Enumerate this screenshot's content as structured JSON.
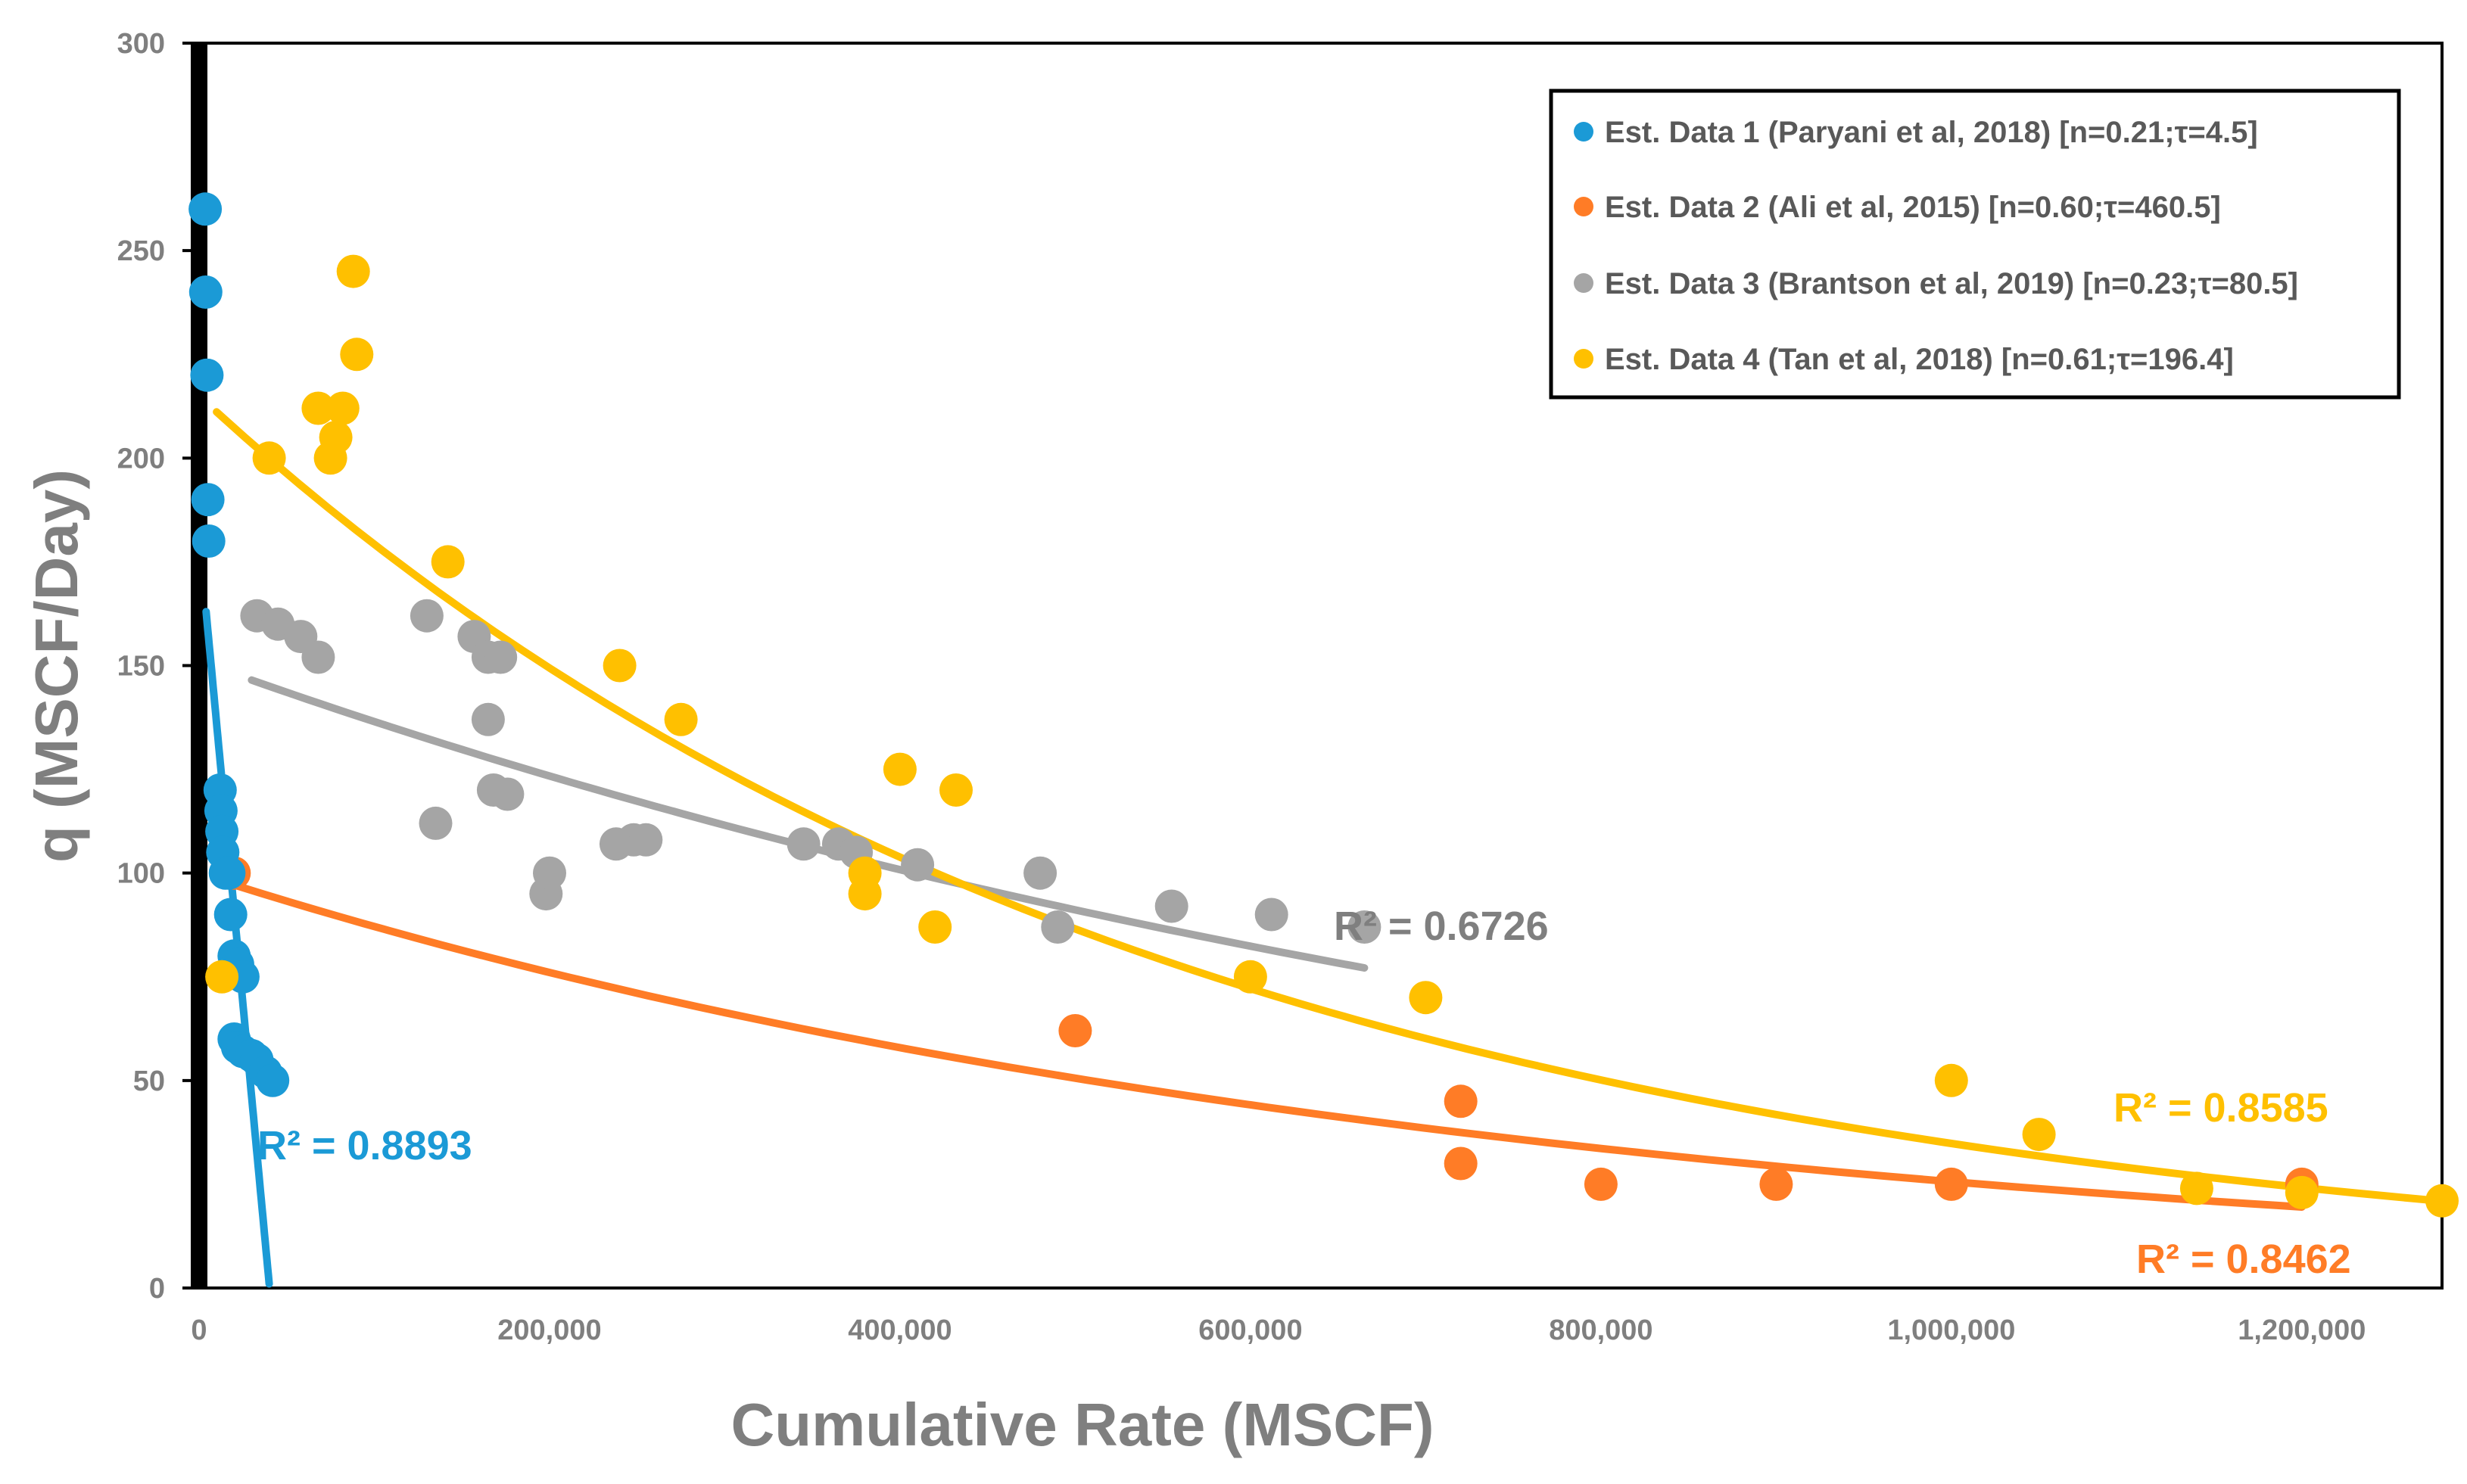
{
  "chart_data": {
    "type": "scatter",
    "title": "",
    "xlabel": "Cumulative Rate (MSCF)",
    "ylabel": "q (MSCF/Day)",
    "xlim": [
      0,
      1280000
    ],
    "ylim": [
      0,
      300
    ],
    "x_ticks": [
      0,
      200000,
      400000,
      600000,
      800000,
      1000000,
      1200000
    ],
    "x_tick_labels": [
      "0",
      "200,000",
      "400,000",
      "600,000",
      "800,000",
      "1,000,000",
      "1,200,000"
    ],
    "y_ticks": [
      0,
      50,
      100,
      150,
      200,
      250,
      300
    ],
    "y_tick_labels": [
      "0",
      "50",
      "100",
      "150",
      "200",
      "250",
      "300"
    ],
    "legend_position": "top-right",
    "series": [
      {
        "name": "Est. Data 1 (Paryani et al, 2018) [n=0.21;τ=4.5]",
        "color": "#1b9ad6",
        "r2_label": "R² = 0.8893",
        "trendline": {
          "x_start": 4000,
          "x_end": 40000,
          "kind": "linear",
          "a": 181,
          "b": 0.0045
        },
        "points": [
          [
            3500,
            260
          ],
          [
            3800,
            240
          ],
          [
            4500,
            220
          ],
          [
            5000,
            190
          ],
          [
            5500,
            180
          ],
          [
            12000,
            120
          ],
          [
            12500,
            115
          ],
          [
            13000,
            110
          ],
          [
            13500,
            105
          ],
          [
            15000,
            100
          ],
          [
            17000,
            100
          ],
          [
            18000,
            90
          ],
          [
            20000,
            80
          ],
          [
            22000,
            78
          ],
          [
            25000,
            75
          ],
          [
            20000,
            60
          ],
          [
            22000,
            58
          ],
          [
            25000,
            57
          ],
          [
            30000,
            56
          ],
          [
            33000,
            55
          ],
          [
            38000,
            52
          ],
          [
            42000,
            50
          ]
        ]
      },
      {
        "name": "Est. Data 2 (Ali et al, 2015) [n=0.60;τ=460.5]",
        "color": "#ff7c26",
        "r2_label": "R² = 0.8462",
        "trendline": {
          "x_start": 20000,
          "x_end": 1200000,
          "kind": "exponential",
          "a": 99.8,
          "b": 1.36e-06
        },
        "points": [
          [
            20000,
            100
          ],
          [
            500000,
            62
          ],
          [
            720000,
            45
          ],
          [
            720000,
            30
          ],
          [
            800000,
            25
          ],
          [
            900000,
            25
          ],
          [
            1000000,
            25
          ],
          [
            1200000,
            25
          ]
        ]
      },
      {
        "name": "Est. Data 3 (Brantson et al, 2019) [n=0.23;τ=80.5]",
        "color": "#a5a5a5",
        "r2_label": "R² = 0.6726",
        "trendline": {
          "x_start": 30000,
          "x_end": 665000,
          "kind": "exponential",
          "a": 151,
          "b": 1.01e-06
        },
        "points": [
          [
            33000,
            162
          ],
          [
            45000,
            160
          ],
          [
            58000,
            157
          ],
          [
            68000,
            152
          ],
          [
            130000,
            162
          ],
          [
            135000,
            112
          ],
          [
            157000,
            157
          ],
          [
            165000,
            152
          ],
          [
            172000,
            152
          ],
          [
            165000,
            137
          ],
          [
            168000,
            120
          ],
          [
            176000,
            119
          ],
          [
            198000,
            95
          ],
          [
            200000,
            100
          ],
          [
            238000,
            107
          ],
          [
            248000,
            108
          ],
          [
            255000,
            108
          ],
          [
            345000,
            107
          ],
          [
            365000,
            107
          ],
          [
            375000,
            105
          ],
          [
            410000,
            102
          ],
          [
            480000,
            100
          ],
          [
            490000,
            87
          ],
          [
            555000,
            92
          ],
          [
            612000,
            90
          ],
          [
            665000,
            87
          ]
        ]
      },
      {
        "name": "Est. Data 4 (Tan et al, 2018) [n=0.61;τ=196.4]",
        "color": "#ffc000",
        "r2_label": "R² = 0.8585",
        "trendline": {
          "x_start": 10000,
          "x_end": 1280000,
          "kind": "exponential",
          "a": 215,
          "b": 1.82e-06
        },
        "points": [
          [
            13000,
            75
          ],
          [
            40000,
            200
          ],
          [
            68000,
            212
          ],
          [
            75000,
            200
          ],
          [
            78000,
            205
          ],
          [
            82000,
            212
          ],
          [
            88000,
            245
          ],
          [
            90000,
            225
          ],
          [
            142000,
            175
          ],
          [
            240000,
            150
          ],
          [
            275000,
            137
          ],
          [
            380000,
            100
          ],
          [
            380000,
            95
          ],
          [
            400000,
            125
          ],
          [
            420000,
            87
          ],
          [
            432000,
            120
          ],
          [
            600000,
            75
          ],
          [
            700000,
            70
          ],
          [
            1000000,
            50
          ],
          [
            1050000,
            37
          ],
          [
            1140000,
            24
          ],
          [
            1200000,
            23
          ],
          [
            1280000,
            21
          ]
        ]
      }
    ]
  }
}
